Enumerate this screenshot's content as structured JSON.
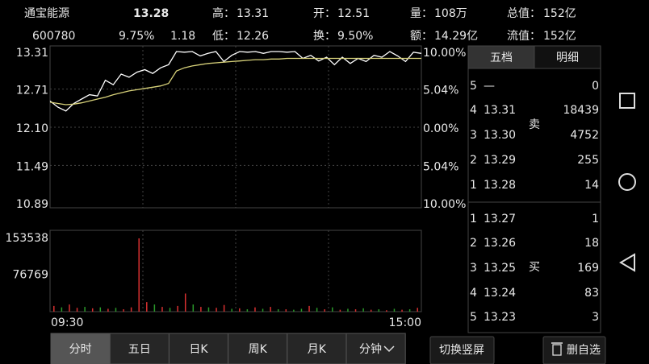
{
  "header": {
    "name": "通宝能源",
    "price": "13.28",
    "code": "600780",
    "change_pct": "9.75%",
    "change": "1.18",
    "stats": [
      {
        "label": "高：",
        "value": "13.31",
        "red": true
      },
      {
        "label": "开：",
        "value": "12.51",
        "red": true
      },
      {
        "label": "量：",
        "value": "108万",
        "red": false
      },
      {
        "label": "总值：",
        "value": "152亿",
        "red": false
      },
      {
        "label": "低：",
        "value": "12.26",
        "red": true
      },
      {
        "label": "换：",
        "value": "9.50%",
        "red": false
      },
      {
        "label": "额：",
        "value": "14.29亿",
        "red": false
      },
      {
        "label": "流值：",
        "value": "152亿",
        "red": false
      }
    ]
  },
  "chart_data": [
    {
      "type": "line",
      "ylim": [
        10.89,
        13.31
      ],
      "yticks": [
        13.31,
        12.71,
        {
          "value": 12.1,
          "label": "12.10"
        },
        11.49,
        10.89
      ],
      "y2lim": [
        -10,
        10
      ],
      "y2ticks": [
        {
          "value": 10,
          "label": "10.00%"
        },
        {
          "value": 5.04,
          "label": "5.04%"
        },
        {
          "value": 0,
          "label": "0.00%"
        },
        {
          "value": -5.04,
          "label": "5.04%"
        },
        {
          "value": -10,
          "label": "10.00%"
        }
      ],
      "grid": true,
      "series": [
        {
          "color": "#ffffff",
          "values": [
            12.52,
            12.42,
            12.36,
            12.48,
            12.55,
            12.62,
            12.6,
            12.85,
            12.78,
            12.95,
            12.9,
            12.98,
            13.02,
            12.96,
            13.05,
            13.1,
            13.31,
            13.3,
            13.31,
            13.24,
            13.28,
            13.31,
            13.15,
            13.25,
            13.31,
            13.3,
            13.31,
            13.28,
            13.31,
            13.31,
            13.3,
            13.31,
            13.2,
            13.25,
            13.16,
            13.22,
            13.1,
            13.22,
            13.12,
            13.2,
            13.15,
            13.25,
            13.22,
            13.31,
            13.24,
            13.15,
            13.3,
            13.28
          ]
        },
        {
          "color": "#d8d27a",
          "values": [
            12.5,
            12.48,
            12.46,
            12.47,
            12.49,
            12.52,
            12.55,
            12.58,
            12.62,
            12.65,
            12.68,
            12.7,
            12.72,
            12.74,
            12.76,
            12.8,
            13.0,
            13.05,
            13.08,
            13.1,
            13.12,
            13.13,
            13.14,
            13.15,
            13.16,
            13.17,
            13.18,
            13.18,
            13.19,
            13.19,
            13.2,
            13.2,
            13.2,
            13.2,
            13.2,
            13.2,
            13.2,
            13.2,
            13.2,
            13.2,
            13.2,
            13.2,
            13.2,
            13.2,
            13.2,
            13.2,
            13.2,
            13.2
          ]
        }
      ]
    },
    {
      "type": "bar",
      "ylim": [
        0,
        153538
      ],
      "yticks": [
        153538,
        76769
      ],
      "x_labels": [
        "09:30",
        "15:00"
      ],
      "values": [
        12000,
        9000,
        15000,
        8000,
        10000,
        7000,
        9000,
        6000,
        8000,
        5000,
        9000,
        153538,
        20000,
        15000,
        10000,
        8000,
        12000,
        38000,
        15000,
        10000,
        9000,
        8000,
        14000,
        6000,
        7000,
        5000,
        9000,
        6000,
        10000,
        5000,
        5000,
        4000,
        6000,
        12000,
        8000,
        5000,
        9000,
        4000,
        6000,
        5000,
        7000,
        4000,
        5000,
        3000,
        6000,
        4000,
        5000,
        8000
      ],
      "colors": [
        "#d83030",
        "#2a9a2a",
        "#d83030",
        "#d83030",
        "#2a9a2a",
        "#d83030",
        "#2a9a2a",
        "#d83030",
        "#2a9a2a",
        "#d83030",
        "#d83030",
        "#d83030",
        "#d83030",
        "#2a9a2a",
        "#d83030",
        "#2a9a2a",
        "#d83030",
        "#d83030",
        "#2a9a2a",
        "#d83030",
        "#2a9a2a",
        "#d83030",
        "#d83030",
        "#2a9a2a",
        "#d83030",
        "#2a9a2a",
        "#d83030",
        "#2a9a2a",
        "#d83030",
        "#2a9a2a",
        "#d83030",
        "#2a9a2a",
        "#2a9a2a",
        "#d83030",
        "#2a9a2a",
        "#d83030",
        "#2a9a2a",
        "#d83030",
        "#2a9a2a",
        "#d83030",
        "#2a9a2a",
        "#d83030",
        "#2a9a2a",
        "#d83030",
        "#2a9a2a",
        "#d83030",
        "#2a9a2a",
        "#d83030"
      ]
    }
  ],
  "order_book": {
    "tabs": [
      "五档",
      "明细"
    ],
    "sell_mark": "卖",
    "buy_mark": "买",
    "sell": [
      [
        "5",
        "—",
        "0"
      ],
      [
        "4",
        "13.31",
        "18439"
      ],
      [
        "3",
        "13.30",
        "4752"
      ],
      [
        "2",
        "13.29",
        "255"
      ],
      [
        "1",
        "13.28",
        "14"
      ]
    ],
    "buy": [
      [
        "1",
        "13.27",
        "1"
      ],
      [
        "2",
        "13.26",
        "18"
      ],
      [
        "3",
        "13.25",
        "169"
      ],
      [
        "4",
        "13.24",
        "83"
      ],
      [
        "5",
        "13.23",
        "3"
      ]
    ]
  },
  "tabs": [
    "分时",
    "五日",
    "日K",
    "周K",
    "月K",
    "分钟"
  ],
  "buttons": [
    "切换竖屏",
    "删自选"
  ]
}
